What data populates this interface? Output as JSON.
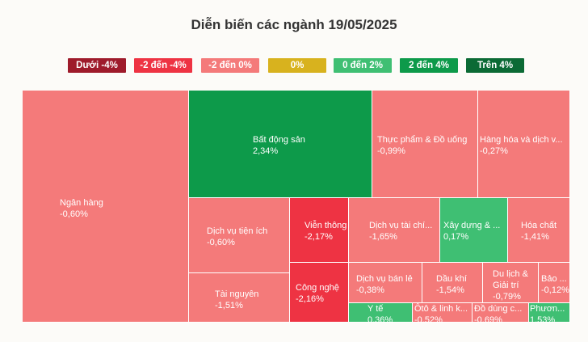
{
  "chart_data": {
    "type": "treemap",
    "title": "Diễn biến các ngành 19/05/2025",
    "legend": [
      {
        "label": "Dưới -4%",
        "color": "#9e1b2b"
      },
      {
        "label": "-2 đến -4%",
        "color": "#ee3343"
      },
      {
        "label": "-2 đến 0%",
        "color": "#f47a7a"
      },
      {
        "label": "0%",
        "color": "#d8b21e"
      },
      {
        "label": "0 đến 2%",
        "color": "#3fbf73"
      },
      {
        "label": "2 đến 4%",
        "color": "#0d9a4a"
      },
      {
        "label": "Trên 4%",
        "color": "#0b6a35"
      }
    ],
    "sectors": [
      {
        "name": "Ngân hàng",
        "change": "-0,60%"
      },
      {
        "name": "Bất động sản",
        "change": "2,34%"
      },
      {
        "name": "Thực phẩm & Đồ uống",
        "change": "-0,99%"
      },
      {
        "name": "Hàng hóa và dịch v...",
        "change": "-0,27%"
      },
      {
        "name": "Dịch vụ tiện ích",
        "change": "-0,60%"
      },
      {
        "name": "Viễn thông",
        "change": "-2,17%"
      },
      {
        "name": "Dịch vụ tài chí...",
        "change": "-1,65%"
      },
      {
        "name": "Xây dựng & ...",
        "change": "0,17%"
      },
      {
        "name": "Hóa chất",
        "change": "-1,41%"
      },
      {
        "name": "Tài nguyên",
        "change": "-1,51%"
      },
      {
        "name": "Công nghệ",
        "change": "-2,16%"
      },
      {
        "name": "Dịch vụ bán lẻ",
        "change": "-0,38%"
      },
      {
        "name": "Dầu khí",
        "change": "-1,54%"
      },
      {
        "name": "Du lịch & Giải trí",
        "change": "-0,79%"
      },
      {
        "name": "Bảo ...",
        "change": "-0,12%"
      },
      {
        "name": "Y tế",
        "change": "0,36%"
      },
      {
        "name": "Ôtô & linh k...",
        "change": "-0,52%"
      },
      {
        "name": "Đồ dùng c...",
        "change": "-0,69%"
      },
      {
        "name": "Phươn...",
        "change": "1,53%"
      }
    ]
  }
}
